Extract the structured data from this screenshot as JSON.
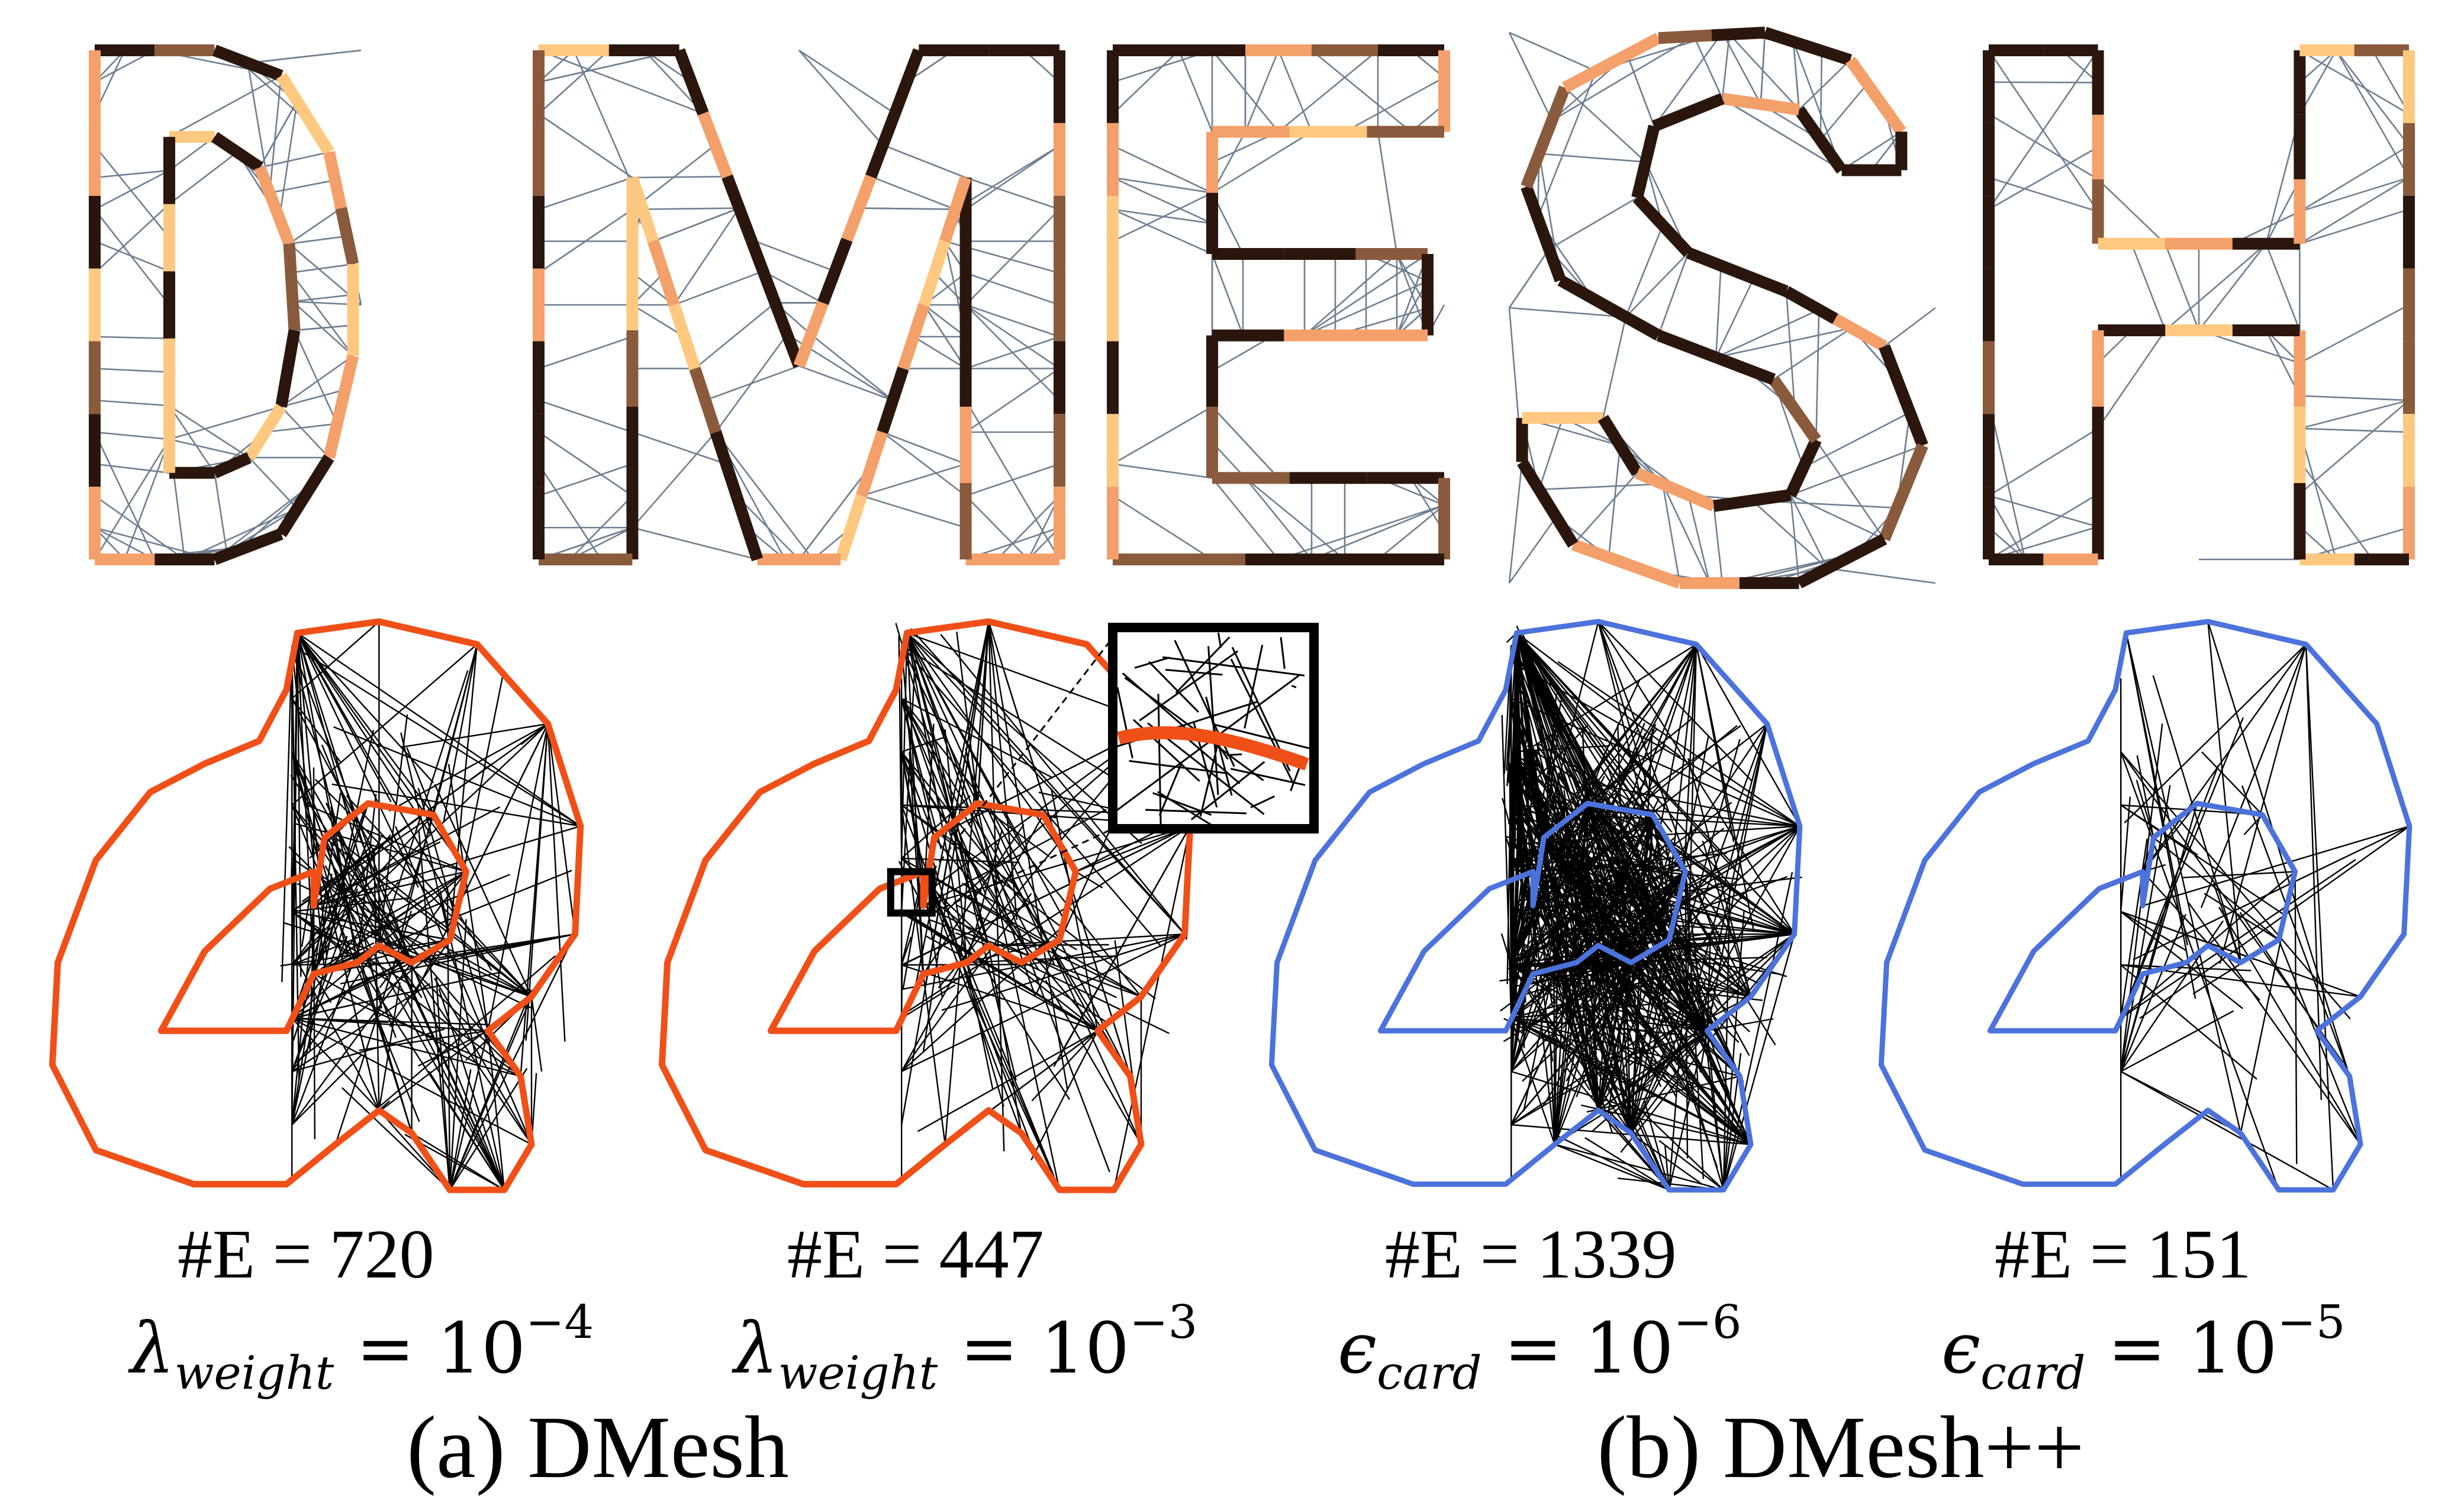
{
  "letters": [
    "D",
    "M",
    "E",
    "S",
    "H"
  ],
  "colors": {
    "dmesh_curve": "#f05018",
    "dmeshpp_curve": "#4c72dc",
    "mesh_edge": "#000000",
    "letter_mesh_edge": "#6e7f91",
    "letter_edge_dark": "#2a160c",
    "letter_edge_mid": "#8a5a3c",
    "letter_edge_light": "#f4a06a",
    "letter_edge_pale": "#ffc880",
    "zoom_box": "#000000"
  },
  "panels": [
    {
      "count": "#E = 720",
      "param_symbol": "λ",
      "param_sub": "weight",
      "param_eq": " = 10",
      "param_exp": "−4",
      "style": "dmesh",
      "density": "high",
      "zoom_inset": false
    },
    {
      "count": "#E = 447",
      "param_symbol": "λ",
      "param_sub": "weight",
      "param_eq": " = 10",
      "param_exp": "−3",
      "style": "dmesh",
      "density": "mid",
      "zoom_inset": true
    },
    {
      "count": "#E = 1339",
      "param_symbol": "ϵ",
      "param_sub": "card",
      "param_eq": " = 10",
      "param_exp": "−6",
      "style": "dmeshpp",
      "density": "very-high",
      "zoom_inset": false
    },
    {
      "count": "#E = 151",
      "param_symbol": "ϵ",
      "param_sub": "card",
      "param_eq": " = 10",
      "param_exp": "−5",
      "style": "dmeshpp",
      "density": "low",
      "zoom_inset": false
    }
  ],
  "groups": [
    "(a) DMesh",
    "(b) DMesh++"
  ]
}
